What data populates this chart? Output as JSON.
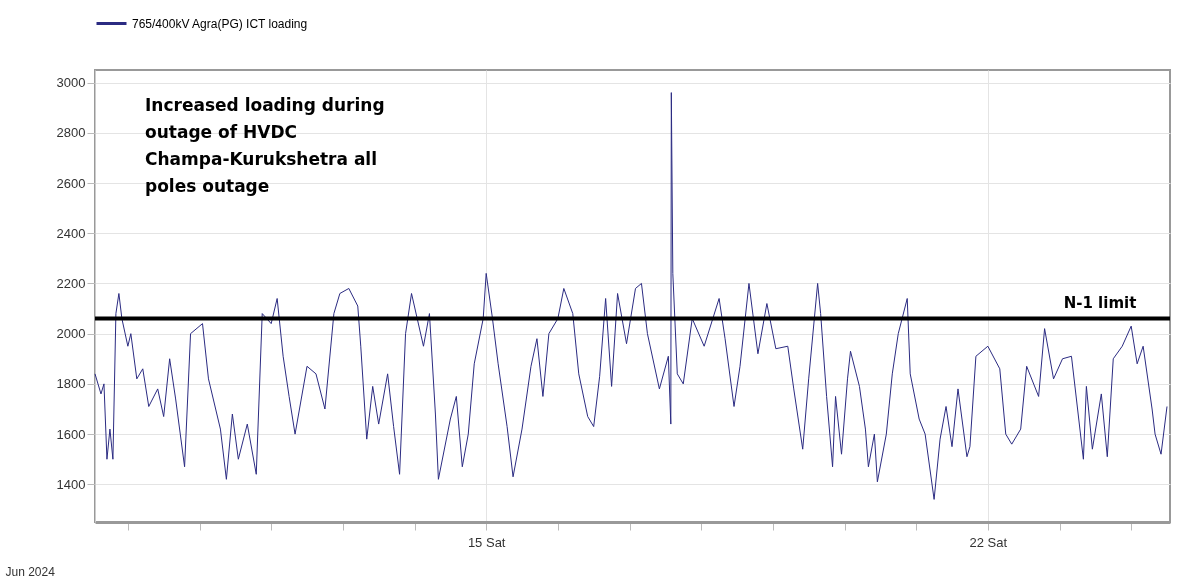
{
  "chart_data": {
    "type": "line",
    "xlabel": "Jun 2024",
    "legend": "top left",
    "grid": true,
    "annotations": [
      "Increased loading during outage of HVDC Champa-Kurukshetra all poles outage"
    ],
    "ref_lines": [
      {
        "axis": "y",
        "value": 2060,
        "label": "N-1 limit",
        "color": "#000000"
      }
    ],
    "xlim": [
      "2024-06-09T13:00",
      "2024-06-24T13:00"
    ],
    "xticks": [
      {
        "value": "2024-06-10",
        "label": null
      },
      {
        "value": "2024-06-11",
        "label": null
      },
      {
        "value": "2024-06-12",
        "label": null
      },
      {
        "value": "2024-06-13",
        "label": null
      },
      {
        "value": "2024-06-14",
        "label": null
      },
      {
        "value": "2024-06-15",
        "label": "15 Sat"
      },
      {
        "value": "2024-06-16",
        "label": null
      },
      {
        "value": "2024-06-17",
        "label": null
      },
      {
        "value": "2024-06-18",
        "label": null
      },
      {
        "value": "2024-06-19",
        "label": null
      },
      {
        "value": "2024-06-20",
        "label": null
      },
      {
        "value": "2024-06-21",
        "label": null
      },
      {
        "value": "2024-06-22",
        "label": "22 Sat"
      },
      {
        "value": "2024-06-23",
        "label": null
      },
      {
        "value": "2024-06-24",
        "label": null
      }
    ],
    "ylim": [
      1250,
      3050
    ],
    "yticks": [
      1400,
      1600,
      1800,
      2000,
      2200,
      2400,
      2600,
      2800,
      3000
    ],
    "x": [
      "2024-06-09T13:00",
      "2024-06-09T15:00",
      "2024-06-09T16:00",
      "2024-06-09T17:00",
      "2024-06-09T18:00",
      "2024-06-09T19:00",
      "2024-06-09T20:00",
      "2024-06-09T21:00",
      "2024-06-09T22:00",
      "2024-06-10T00:00",
      "2024-06-10T01:00",
      "2024-06-10T03:00",
      "2024-06-10T05:00",
      "2024-06-10T07:00",
      "2024-06-10T10:00",
      "2024-06-10T12:00",
      "2024-06-10T14:00",
      "2024-06-10T16:00",
      "2024-06-10T19:00",
      "2024-06-10T21:00",
      "2024-06-11T01:00",
      "2024-06-11T03:00",
      "2024-06-11T07:00",
      "2024-06-11T09:00",
      "2024-06-11T11:00",
      "2024-06-11T13:00",
      "2024-06-11T16:00",
      "2024-06-11T19:00",
      "2024-06-11T21:00",
      "2024-06-12T00:00",
      "2024-06-12T02:00",
      "2024-06-12T04:00",
      "2024-06-12T06:00",
      "2024-06-12T08:00",
      "2024-06-12T12:00",
      "2024-06-12T15:00",
      "2024-06-12T18:00",
      "2024-06-12T21:00",
      "2024-06-12T23:00",
      "2024-06-13T02:00",
      "2024-06-13T05:00",
      "2024-06-13T06:00",
      "2024-06-13T08:00",
      "2024-06-13T10:00",
      "2024-06-13T12:00",
      "2024-06-13T15:00",
      "2024-06-13T17:00",
      "2024-06-13T19:00",
      "2024-06-13T21:00",
      "2024-06-13T23:00",
      "2024-06-14T03:00",
      "2024-06-14T05:00",
      "2024-06-14T07:00",
      "2024-06-14T08:00",
      "2024-06-14T12:00",
      "2024-06-14T14:00",
      "2024-06-14T16:00",
      "2024-06-14T18:00",
      "2024-06-14T20:00",
      "2024-06-14T23:00",
      "2024-06-15T00:00",
      "2024-06-15T02:00",
      "2024-06-15T04:00",
      "2024-06-15T07:00",
      "2024-06-15T09:00",
      "2024-06-15T12:00",
      "2024-06-15T15:00",
      "2024-06-15T17:00",
      "2024-06-15T19:00",
      "2024-06-15T21:00",
      "2024-06-16T00:00",
      "2024-06-16T02:00",
      "2024-06-16T05:00",
      "2024-06-16T07:00",
      "2024-06-16T10:00",
      "2024-06-16T12:00",
      "2024-06-16T14:00",
      "2024-06-16T16:00",
      "2024-06-16T18:00",
      "2024-06-16T20:00",
      "2024-06-16T23:00",
      "2024-06-17T02:00",
      "2024-06-17T04:00",
      "2024-06-17T06:00",
      "2024-06-17T10:00",
      "2024-06-17T13:00",
      "2024-06-17T13:50",
      "2024-06-17T14:00",
      "2024-06-17T14:30",
      "2024-06-17T16:00",
      "2024-06-17T18:00",
      "2024-06-17T21:00",
      "2024-06-18T01:00",
      "2024-06-18T06:00",
      "2024-06-18T08:00",
      "2024-06-18T11:00",
      "2024-06-18T13:00",
      "2024-06-18T16:00",
      "2024-06-18T19:00",
      "2024-06-18T22:00",
      "2024-06-19T01:00",
      "2024-06-19T05:00",
      "2024-06-19T07:00",
      "2024-06-19T10:00",
      "2024-06-19T12:00",
      "2024-06-19T15:00",
      "2024-06-19T16:00",
      "2024-06-19T18:00",
      "2024-06-19T20:00",
      "2024-06-19T21:00",
      "2024-06-19T23:00",
      "2024-06-20T01:00",
      "2024-06-20T02:00",
      "2024-06-20T05:00",
      "2024-06-20T07:00",
      "2024-06-20T08:00",
      "2024-06-20T10:00",
      "2024-06-20T11:00",
      "2024-06-20T14:00",
      "2024-06-20T16:00",
      "2024-06-20T18:00",
      "2024-06-20T21:00",
      "2024-06-20T22:00",
      "2024-06-21T01:00",
      "2024-06-21T03:00",
      "2024-06-21T06:00",
      "2024-06-21T08:00",
      "2024-06-21T10:00",
      "2024-06-21T12:00",
      "2024-06-21T14:00",
      "2024-06-21T17:00",
      "2024-06-21T18:00",
      "2024-06-21T20:00",
      "2024-06-22T00:00",
      "2024-06-22T04:00",
      "2024-06-22T06:00",
      "2024-06-22T08:00",
      "2024-06-22T11:00",
      "2024-06-22T13:00",
      "2024-06-22T17:00",
      "2024-06-22T19:00",
      "2024-06-22T22:00",
      "2024-06-23T01:00",
      "2024-06-23T04:00",
      "2024-06-23T08:00",
      "2024-06-23T09:00",
      "2024-06-23T11:00",
      "2024-06-23T14:00",
      "2024-06-23T16:00",
      "2024-06-23T18:00",
      "2024-06-23T21:00",
      "2024-06-24T00:00",
      "2024-06-24T02:00",
      "2024-06-24T04:00",
      "2024-06-24T07:00",
      "2024-06-24T08:00",
      "2024-06-24T10:00",
      "2024-06-24T12:00"
    ],
    "series": [
      {
        "name": "765/400kV Agra(PG) ICT loading",
        "color": "#2b2b82",
        "values": [
          1840,
          1760,
          1800,
          1500,
          1620,
          1500,
          2080,
          2160,
          2060,
          1950,
          2000,
          1820,
          1860,
          1710,
          1780,
          1670,
          1900,
          1740,
          1470,
          2000,
          2040,
          1820,
          1620,
          1420,
          1680,
          1500,
          1640,
          1440,
          2080,
          2040,
          2140,
          1910,
          1750,
          1600,
          1870,
          1840,
          1700,
          2080,
          2160,
          2180,
          2110,
          1950,
          1580,
          1790,
          1640,
          1840,
          1630,
          1440,
          2000,
          2160,
          1950,
          2080,
          1680,
          1420,
          1660,
          1750,
          1470,
          1600,
          1880,
          2060,
          2240,
          2070,
          1880,
          1630,
          1430,
          1620,
          1870,
          1980,
          1750,
          2000,
          2060,
          2180,
          2080,
          1840,
          1670,
          1630,
          1830,
          2140,
          1790,
          2160,
          1960,
          2180,
          2200,
          2000,
          1780,
          1910,
          1640,
          2960,
          2240,
          1840,
          1800,
          2060,
          1950,
          2140,
          1980,
          1710,
          1870,
          2200,
          1920,
          2120,
          1940,
          1950,
          1780,
          1540,
          1820,
          2200,
          2080,
          1750,
          1470,
          1750,
          1520,
          1820,
          1930,
          1790,
          1620,
          1470,
          1600,
          1410,
          1600,
          1840,
          2000,
          2140,
          1840,
          1660,
          1600,
          1340,
          1580,
          1710,
          1550,
          1780,
          1510,
          1550,
          1910,
          1950,
          1860,
          1600,
          1560,
          1620,
          1870,
          1750,
          2020,
          1820,
          1900,
          1910,
          1500,
          1790,
          1540,
          1760,
          1510,
          1900,
          1950,
          2030,
          1880,
          1950,
          1700,
          1600,
          1520,
          1710
        ]
      }
    ]
  }
}
